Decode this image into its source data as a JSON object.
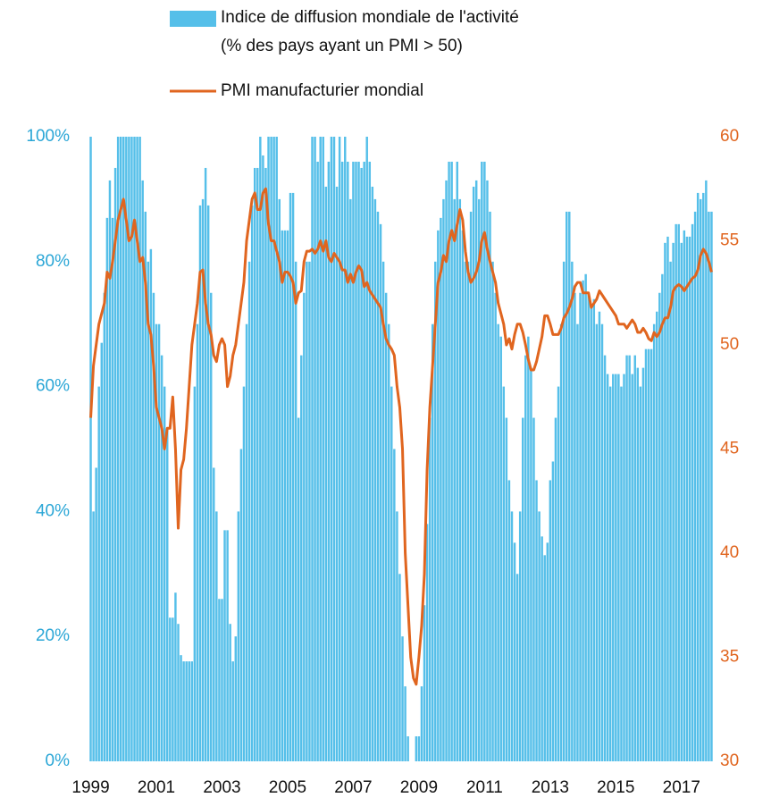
{
  "chart_data": {
    "type": "bar_line",
    "categories": [
      "1999",
      null,
      null,
      null,
      null,
      null,
      null,
      null,
      null,
      null,
      null,
      null,
      null,
      null,
      null,
      null,
      null,
      null,
      null,
      null,
      null,
      null,
      null,
      null,
      "2001",
      null,
      null,
      null,
      null,
      null,
      null,
      null,
      null,
      null,
      null,
      null,
      null,
      null,
      null,
      null,
      null,
      null,
      null,
      null,
      null,
      null,
      null,
      null,
      "2003",
      null,
      null,
      null,
      null,
      null,
      null,
      null,
      null,
      null,
      null,
      null,
      null,
      null,
      null,
      null,
      null,
      null,
      null,
      null,
      null,
      null,
      null,
      null,
      "2005",
      null,
      null,
      null,
      null,
      null,
      null,
      null,
      null,
      null,
      null,
      null,
      null,
      null,
      null,
      null,
      null,
      null,
      null,
      null,
      null,
      null,
      null,
      null,
      "2007",
      null,
      null,
      null,
      null,
      null,
      null,
      null,
      null,
      null,
      null,
      null,
      null,
      null,
      null,
      null,
      null,
      null,
      null,
      null,
      null,
      null,
      null,
      null,
      "2009",
      null,
      null,
      null,
      null,
      null,
      null,
      null,
      null,
      null,
      null,
      null,
      null,
      null,
      null,
      null,
      null,
      null,
      null,
      null,
      null,
      null,
      null,
      null,
      "2011",
      null,
      null,
      null,
      null,
      null,
      null,
      null,
      null,
      null,
      null,
      null,
      null,
      null,
      null,
      null,
      null,
      null,
      null,
      null,
      null,
      null,
      null,
      null,
      "2013",
      null,
      null,
      null,
      null,
      null,
      null,
      null,
      null,
      null,
      null,
      null,
      null,
      null,
      null,
      null,
      null,
      null,
      null,
      null,
      null,
      null,
      null,
      null,
      "2015",
      null,
      null,
      null,
      null,
      null,
      null,
      null,
      null,
      null,
      null,
      null,
      null,
      null,
      null,
      null,
      null,
      null,
      null,
      null,
      null,
      null,
      null,
      null,
      "2017",
      null,
      null,
      null,
      null,
      null,
      null,
      null,
      null,
      null,
      null,
      null
    ],
    "series": [
      {
        "name": "Indice de diffusion mondiale de l'activité\n(% des pays ayant un PMI > 50)",
        "type": "bar",
        "color": "#55bfe9",
        "values": [
          100,
          40,
          47,
          60,
          67,
          75,
          87,
          93,
          87,
          95,
          100,
          100,
          100,
          100,
          100,
          100,
          100,
          100,
          100,
          93,
          88,
          80,
          82,
          75,
          70,
          70,
          65,
          60,
          53,
          23,
          23,
          27,
          22,
          17,
          16,
          16,
          16,
          16,
          60,
          70,
          89,
          90,
          95,
          89,
          75,
          47,
          40,
          26,
          26,
          37,
          37,
          22,
          16,
          20,
          40,
          50,
          60,
          70,
          80,
          89,
          95,
          95,
          100,
          97,
          95,
          100,
          100,
          100,
          100,
          90,
          85,
          85,
          85,
          91,
          91,
          80,
          55,
          65,
          75,
          80,
          80,
          100,
          100,
          96,
          100,
          100,
          92,
          96,
          100,
          100,
          92,
          100,
          96,
          100,
          96,
          90,
          96,
          96,
          96,
          95,
          96,
          100,
          96,
          92,
          90,
          88,
          86,
          80,
          75,
          70,
          60,
          50,
          40,
          30,
          20,
          12,
          4,
          0,
          0,
          4,
          4,
          12,
          25,
          38,
          55,
          70,
          80,
          85,
          87,
          90,
          93,
          96,
          96,
          90,
          96,
          90,
          85,
          80,
          80,
          88,
          92,
          93,
          90,
          96,
          96,
          93,
          88,
          80,
          75,
          70,
          68,
          60,
          55,
          45,
          40,
          35,
          30,
          40,
          55,
          65,
          68,
          63,
          55,
          45,
          40,
          36,
          33,
          35,
          45,
          48,
          55,
          60,
          70,
          80,
          88,
          88,
          80,
          75,
          70,
          75,
          77,
          78,
          75,
          73,
          74,
          70,
          72,
          70,
          65,
          62,
          60,
          62,
          62,
          62,
          60,
          62,
          65,
          65,
          62,
          65,
          63,
          60,
          63,
          66,
          66,
          66,
          70,
          72,
          75,
          78,
          83,
          84,
          80,
          83,
          86,
          86,
          83,
          85,
          84,
          84,
          86,
          88,
          91,
          90,
          91,
          93,
          88,
          88
        ]
      },
      {
        "name": "PMI manufacturier mondial",
        "type": "line",
        "axis": "y2",
        "color": "#e0651f",
        "values": [
          46.5,
          49,
          50,
          51,
          51.5,
          52,
          53.5,
          53.2,
          54,
          55,
          56,
          56.5,
          57,
          56,
          55,
          55.2,
          56,
          55,
          54,
          54.2,
          53,
          51,
          50.5,
          49,
          47,
          46.5,
          46,
          45,
          46,
          46,
          47.5,
          45,
          41.2,
          44,
          44.5,
          46,
          48,
          50,
          51,
          52,
          53.5,
          53.6,
          52,
          51,
          50.5,
          49.5,
          49.2,
          50,
          50.3,
          50,
          48,
          48.5,
          49.5,
          50,
          51,
          52,
          53,
          55,
          56,
          57,
          57.3,
          56.5,
          56.5,
          57.3,
          57.5,
          55.8,
          55,
          55,
          54.5,
          54,
          53,
          53.5,
          53.5,
          53.3,
          53,
          52,
          52.5,
          52.6,
          54,
          54.5,
          54.5,
          54.6,
          54.4,
          54.6,
          55,
          54.5,
          55,
          54.2,
          54,
          54.4,
          54.2,
          54,
          53.6,
          53.6,
          53,
          53.4,
          53,
          53.5,
          53.8,
          53.6,
          52.8,
          53,
          52.6,
          52.4,
          52.2,
          52,
          51.8,
          51,
          50.3,
          50,
          49.8,
          49.5,
          48,
          47,
          45,
          40,
          37.5,
          35,
          34,
          33.7,
          35,
          36.5,
          39,
          44,
          47,
          49,
          51,
          53,
          53.5,
          54.3,
          54,
          55,
          55.5,
          55,
          55.8,
          56.5,
          56,
          54.5,
          53.5,
          53,
          53.2,
          53.5,
          54,
          55,
          55.4,
          54.6,
          54,
          53.5,
          53,
          52,
          51.5,
          51,
          50,
          50.3,
          49.8,
          50.5,
          51,
          51,
          50.6,
          50,
          49.3,
          48.8,
          48.8,
          49.2,
          49.8,
          50.4,
          51.4,
          51.4,
          51,
          50.5,
          50.5,
          50.5,
          50.8,
          51.3,
          51.5,
          51.8,
          52.2,
          52.8,
          53,
          53,
          52.5,
          52.5,
          52.5,
          51.8,
          52,
          52.2,
          52.6,
          52.4,
          52.2,
          52,
          51.8,
          51.6,
          51.4,
          51,
          51,
          51,
          50.8,
          51,
          51.2,
          51,
          50.6,
          50.6,
          50.8,
          50.6,
          50.3,
          50.2,
          50.6,
          50.4,
          50.6,
          51,
          51.3,
          51.3,
          51.8,
          52.6,
          52.8,
          52.9,
          52.8,
          52.6,
          52.8,
          53,
          53.2,
          53.3,
          53.6,
          54.3,
          54.6,
          54.4,
          54,
          53.5
        ]
      }
    ],
    "ylim": [
      0,
      100
    ],
    "yticks": [
      {
        "value": 0,
        "label": "0%"
      },
      {
        "value": 20,
        "label": "20%"
      },
      {
        "value": 40,
        "label": "40%"
      },
      {
        "value": 60,
        "label": "60%"
      },
      {
        "value": 80,
        "label": "80%"
      },
      {
        "value": 100,
        "label": "100%"
      }
    ],
    "y2lim": [
      30,
      60
    ],
    "y2ticks": [
      30,
      35,
      40,
      45,
      50,
      55,
      60
    ],
    "ytick_color": "#2aa6d6",
    "y2tick_color": "#e0651f"
  }
}
